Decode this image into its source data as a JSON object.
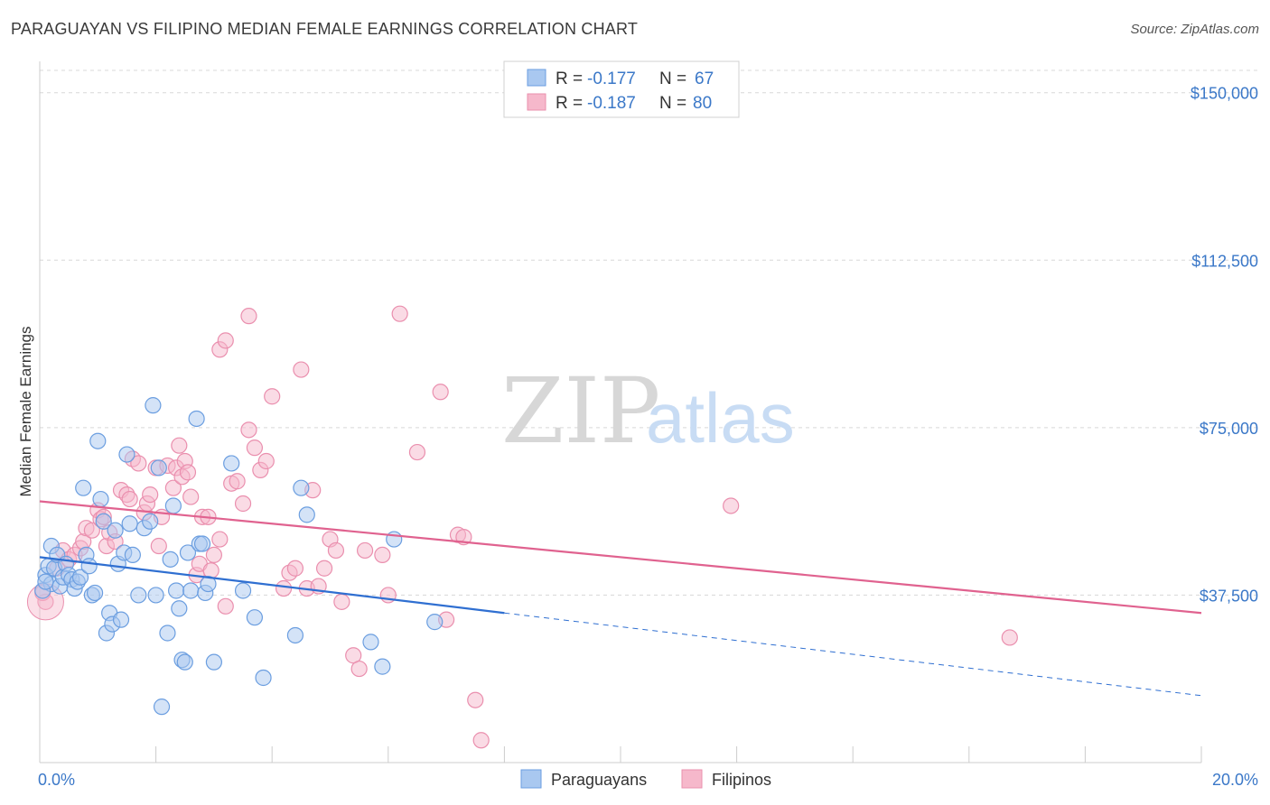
{
  "header": {
    "title": "PARAGUAYAN VS FILIPINO MEDIAN FEMALE EARNINGS CORRELATION CHART",
    "source": "Source: ZipAtlas.com"
  },
  "watermark": {
    "zip": "ZIP",
    "atlas": "atlas"
  },
  "legend": {
    "rows": [
      {
        "r_label": "R = ",
        "r_value": "-0.177",
        "n_label": "N = ",
        "n_value": "67"
      },
      {
        "r_label": "R = ",
        "r_value": "-0.187",
        "n_label": "N = ",
        "n_value": "80"
      }
    ],
    "bottom": [
      "Paraguayans",
      "Filipinos"
    ]
  },
  "colors": {
    "blue_fill": "#a9c8f0",
    "blue_stroke": "#6b9ee0",
    "blue_line": "#2f6fd1",
    "pink_fill": "#f6b8cb",
    "pink_stroke": "#ea8fae",
    "pink_line": "#e0628f",
    "grid": "#d8d8d8",
    "label": "#3b78c8"
  },
  "chart_data": {
    "type": "scatter",
    "title": "PARAGUAYAN VS FILIPINO MEDIAN FEMALE EARNINGS CORRELATION CHART",
    "xlabel": "",
    "ylabel": "Median Female Earnings",
    "xlim": [
      0,
      20
    ],
    "ylim": [
      0,
      155000
    ],
    "x_tick_labels": [
      "0.0%",
      "20.0%"
    ],
    "y_ticks": [
      37500,
      75000,
      112500,
      150000
    ],
    "y_tick_labels": [
      "$37,500",
      "$75,000",
      "$112,500",
      "$150,000"
    ],
    "grid": true,
    "series": [
      {
        "name": "Paraguayans",
        "trend": {
          "x0": 0,
          "y0": 46000,
          "x1": 8,
          "y1": 33500,
          "dashed_to_x": 20,
          "dashed_to_y": 15000
        },
        "points": [
          [
            0.1,
            42000
          ],
          [
            0.15,
            44000
          ],
          [
            0.2,
            40000
          ],
          [
            0.2,
            48500
          ],
          [
            0.25,
            43500
          ],
          [
            0.3,
            46500
          ],
          [
            0.35,
            39500
          ],
          [
            0.4,
            41500
          ],
          [
            0.45,
            44500
          ],
          [
            0.5,
            42000
          ],
          [
            0.55,
            41000
          ],
          [
            0.6,
            39000
          ],
          [
            0.65,
            40500
          ],
          [
            0.7,
            41500
          ],
          [
            0.75,
            61500
          ],
          [
            0.8,
            46500
          ],
          [
            0.85,
            44000
          ],
          [
            0.9,
            37500
          ],
          [
            0.95,
            38000
          ],
          [
            1.0,
            72000
          ],
          [
            1.05,
            59000
          ],
          [
            1.1,
            54000
          ],
          [
            1.15,
            29000
          ],
          [
            1.2,
            33500
          ],
          [
            1.25,
            31000
          ],
          [
            1.3,
            52000
          ],
          [
            1.35,
            44500
          ],
          [
            1.4,
            32000
          ],
          [
            1.45,
            47000
          ],
          [
            1.5,
            69000
          ],
          [
            1.55,
            53500
          ],
          [
            1.6,
            46500
          ],
          [
            1.7,
            37500
          ],
          [
            1.8,
            52500
          ],
          [
            1.9,
            54000
          ],
          [
            1.95,
            80000
          ],
          [
            2.0,
            37500
          ],
          [
            2.05,
            66000
          ],
          [
            2.1,
            12500
          ],
          [
            2.2,
            29000
          ],
          [
            2.25,
            45500
          ],
          [
            2.3,
            57500
          ],
          [
            2.35,
            38500
          ],
          [
            2.4,
            34500
          ],
          [
            2.45,
            23000
          ],
          [
            2.5,
            22500
          ],
          [
            2.55,
            47000
          ],
          [
            2.6,
            38500
          ],
          [
            2.7,
            77000
          ],
          [
            2.75,
            49000
          ],
          [
            2.8,
            49000
          ],
          [
            2.85,
            38000
          ],
          [
            2.9,
            40000
          ],
          [
            3.0,
            22500
          ],
          [
            3.3,
            67000
          ],
          [
            3.5,
            38500
          ],
          [
            3.7,
            32500
          ],
          [
            3.85,
            19000
          ],
          [
            4.4,
            28500
          ],
          [
            4.5,
            61500
          ],
          [
            4.6,
            55500
          ],
          [
            5.7,
            27000
          ],
          [
            5.9,
            21500
          ],
          [
            6.1,
            50000
          ],
          [
            6.8,
            31500
          ],
          [
            0.05,
            38500
          ],
          [
            0.1,
            40500
          ]
        ]
      },
      {
        "name": "Filipinos",
        "trend": {
          "x0": 0,
          "y0": 58500,
          "x1": 20,
          "y1": 33500
        },
        "points": [
          [
            0.1,
            36000
          ],
          [
            0.3,
            43500
          ],
          [
            0.4,
            47500
          ],
          [
            0.5,
            45500
          ],
          [
            0.6,
            46500
          ],
          [
            0.7,
            48000
          ],
          [
            0.75,
            49500
          ],
          [
            0.8,
            52500
          ],
          [
            0.9,
            52000
          ],
          [
            1.0,
            56500
          ],
          [
            1.05,
            54500
          ],
          [
            1.1,
            55000
          ],
          [
            1.15,
            48500
          ],
          [
            1.2,
            51500
          ],
          [
            1.3,
            49500
          ],
          [
            1.4,
            61000
          ],
          [
            1.5,
            60000
          ],
          [
            1.55,
            59000
          ],
          [
            1.6,
            68000
          ],
          [
            1.7,
            67000
          ],
          [
            1.8,
            56000
          ],
          [
            1.85,
            58000
          ],
          [
            1.9,
            60000
          ],
          [
            2.0,
            66000
          ],
          [
            2.05,
            48500
          ],
          [
            2.1,
            55000
          ],
          [
            2.2,
            66500
          ],
          [
            2.3,
            61500
          ],
          [
            2.35,
            66000
          ],
          [
            2.4,
            71000
          ],
          [
            2.45,
            64000
          ],
          [
            2.5,
            67500
          ],
          [
            2.55,
            65000
          ],
          [
            2.6,
            59500
          ],
          [
            2.7,
            42000
          ],
          [
            2.75,
            44500
          ],
          [
            2.8,
            55000
          ],
          [
            2.9,
            55000
          ],
          [
            2.95,
            43000
          ],
          [
            3.0,
            46500
          ],
          [
            3.1,
            50000
          ],
          [
            3.2,
            35000
          ],
          [
            3.3,
            62500
          ],
          [
            3.4,
            63000
          ],
          [
            3.5,
            58000
          ],
          [
            3.6,
            74500
          ],
          [
            3.7,
            70500
          ],
          [
            3.8,
            65500
          ],
          [
            3.9,
            67500
          ],
          [
            4.0,
            82000
          ],
          [
            4.2,
            39000
          ],
          [
            4.3,
            42500
          ],
          [
            4.4,
            43500
          ],
          [
            4.5,
            88000
          ],
          [
            4.6,
            39000
          ],
          [
            4.7,
            61000
          ],
          [
            4.8,
            39500
          ],
          [
            4.9,
            43500
          ],
          [
            5.0,
            50000
          ],
          [
            5.1,
            47500
          ],
          [
            5.2,
            36000
          ],
          [
            5.4,
            24000
          ],
          [
            5.5,
            21000
          ],
          [
            5.6,
            47500
          ],
          [
            5.9,
            46500
          ],
          [
            6.0,
            37500
          ],
          [
            6.2,
            100500
          ],
          [
            6.5,
            69500
          ],
          [
            6.9,
            83000
          ],
          [
            7.0,
            32000
          ],
          [
            7.2,
            51000
          ],
          [
            7.3,
            50500
          ],
          [
            7.5,
            14000
          ],
          [
            7.6,
            5000
          ],
          [
            3.1,
            92500
          ],
          [
            3.2,
            94500
          ],
          [
            3.6,
            100000
          ],
          [
            11.9,
            57500
          ],
          [
            16.7,
            28000
          ],
          [
            0.05,
            38000
          ]
        ]
      }
    ]
  }
}
